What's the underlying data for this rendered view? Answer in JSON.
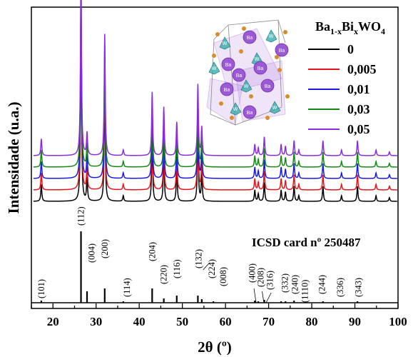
{
  "chart_data": {
    "type": "line",
    "xlabel": "2θ (º)",
    "ylabel": "Intensidade (u.a.)",
    "xlim": [
      15,
      100
    ],
    "x_ticks": [
      "20",
      "30",
      "40",
      "50",
      "60",
      "70",
      "80",
      "90",
      "100"
    ],
    "legend": {
      "title_main": "Ba",
      "title_sub1": "1-x",
      "title_mid": "Bi",
      "title_sub2": "x",
      "title_end": "WO",
      "title_sub3": "4",
      "placement": "top-right"
    },
    "series": [
      {
        "name": "0",
        "color": "#000000",
        "offset": 0
      },
      {
        "name": "0,005",
        "color": "#e8141a",
        "offset": 1
      },
      {
        "name": "0,01",
        "color": "#1a1ae8",
        "offset": 2
      },
      {
        "name": "0,03",
        "color": "#128a12",
        "offset": 3
      },
      {
        "name": "0,05",
        "color": "#8a2be2",
        "offset": 4
      }
    ],
    "peaks": [
      {
        "x": 17.3,
        "h": 0.09
      },
      {
        "x": 26.5,
        "h": 1.0
      },
      {
        "x": 27.9,
        "h": 0.12
      },
      {
        "x": 32.0,
        "h": 0.65
      },
      {
        "x": 36.3,
        "h": 0.03
      },
      {
        "x": 43.0,
        "h": 0.34
      },
      {
        "x": 45.7,
        "h": 0.26
      },
      {
        "x": 48.7,
        "h": 0.18
      },
      {
        "x": 53.6,
        "h": 0.38
      },
      {
        "x": 54.5,
        "h": 0.15
      },
      {
        "x": 66.8,
        "h": 0.06
      },
      {
        "x": 67.6,
        "h": 0.04
      },
      {
        "x": 69.0,
        "h": 0.1
      },
      {
        "x": 72.9,
        "h": 0.06
      },
      {
        "x": 73.9,
        "h": 0.05
      },
      {
        "x": 75.9,
        "h": 0.08
      },
      {
        "x": 77.0,
        "h": 0.03
      },
      {
        "x": 82.6,
        "h": 0.08
      },
      {
        "x": 86.9,
        "h": 0.03
      },
      {
        "x": 90.6,
        "h": 0.08
      },
      {
        "x": 94.9,
        "h": 0.03
      },
      {
        "x": 98.0,
        "h": 0.02
      }
    ],
    "reference": {
      "label": "ICSD card nº 250487",
      "sticks": [
        {
          "x": 17.3,
          "h": 0.03
        },
        {
          "x": 26.5,
          "h": 1.0
        },
        {
          "x": 27.9,
          "h": 0.16
        },
        {
          "x": 32.0,
          "h": 0.2
        },
        {
          "x": 36.3,
          "h": 0.02
        },
        {
          "x": 43.0,
          "h": 0.2
        },
        {
          "x": 45.7,
          "h": 0.06
        },
        {
          "x": 48.7,
          "h": 0.1
        },
        {
          "x": 53.6,
          "h": 0.1
        },
        {
          "x": 54.5,
          "h": 0.05
        },
        {
          "x": 57.2,
          "h": 0.02
        },
        {
          "x": 66.8,
          "h": 0.03
        },
        {
          "x": 67.6,
          "h": 0.02
        },
        {
          "x": 69.0,
          "h": 0.04
        },
        {
          "x": 72.9,
          "h": 0.02
        },
        {
          "x": 73.9,
          "h": 0.02
        },
        {
          "x": 75.9,
          "h": 0.03
        },
        {
          "x": 82.6,
          "h": 0.02
        },
        {
          "x": 90.6,
          "h": 0.02
        }
      ],
      "hkl_labels": [
        {
          "text": "(101)",
          "x": 17.3
        },
        {
          "text": "(112)",
          "x": 26.5
        },
        {
          "text": "(004)",
          "x": 29.0
        },
        {
          "text": "(200)",
          "x": 32.0
        },
        {
          "text": "(114)",
          "x": 37.2
        },
        {
          "text": "(204)",
          "x": 43.0
        },
        {
          "text": "(220)",
          "x": 45.7
        },
        {
          "text": "(116)",
          "x": 48.7
        },
        {
          "text": "(132)",
          "x": 53.8
        },
        {
          "text": "(224)",
          "x": 56.8
        },
        {
          "text": "(008)",
          "x": 59.5
        },
        {
          "text": "(400)",
          "x": 66.2
        },
        {
          "text": "(208)",
          "x": 68.2
        },
        {
          "text": "(316)",
          "x": 70.3
        },
        {
          "text": "(332)",
          "x": 73.8
        },
        {
          "text": "(240)",
          "x": 76.1
        },
        {
          "text": "(1110)",
          "x": 78.4
        },
        {
          "text": "(244)",
          "x": 82.4
        },
        {
          "text": "(336)",
          "x": 86.6
        },
        {
          "text": "(343)",
          "x": 90.8
        }
      ]
    }
  },
  "inset": {
    "atom_ba": "Ba",
    "atom_w": "W",
    "colors": {
      "ba": "#9b59d6",
      "w": "#2aa8a8",
      "o": "#d98c2b"
    }
  }
}
